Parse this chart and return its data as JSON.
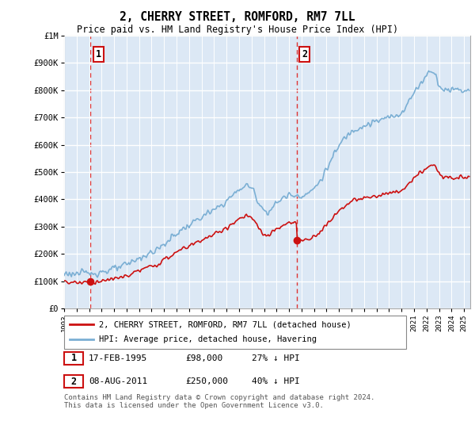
{
  "title": "2, CHERRY STREET, ROMFORD, RM7 7LL",
  "subtitle": "Price paid vs. HM Land Registry's House Price Index (HPI)",
  "ylim": [
    0,
    1000000
  ],
  "yticks": [
    0,
    100000,
    200000,
    300000,
    400000,
    500000,
    600000,
    700000,
    800000,
    900000,
    1000000
  ],
  "ytick_labels": [
    "£0",
    "£100K",
    "£200K",
    "£300K",
    "£400K",
    "£500K",
    "£600K",
    "£700K",
    "£800K",
    "£900K",
    "£1M"
  ],
  "hpi_color": "#7bafd4",
  "price_color": "#cc1111",
  "marker_color": "#cc1111",
  "sale1_year": 1995.12,
  "sale1_price": 98000,
  "sale2_year": 2011.6,
  "sale2_price": 250000,
  "annotation1_label": "1",
  "annotation2_label": "2",
  "legend_line1": "2, CHERRY STREET, ROMFORD, RM7 7LL (detached house)",
  "legend_line2": "HPI: Average price, detached house, Havering",
  "table_row1": [
    "1",
    "17-FEB-1995",
    "£98,000",
    "27% ↓ HPI"
  ],
  "table_row2": [
    "2",
    "08-AUG-2011",
    "£250,000",
    "40% ↓ HPI"
  ],
  "footnote": "Contains HM Land Registry data © Crown copyright and database right 2024.\nThis data is licensed under the Open Government Licence v3.0.",
  "background_color": "#dce8f5",
  "grid_color": "#ffffff",
  "xmin": 1993,
  "xmax": 2025.5
}
